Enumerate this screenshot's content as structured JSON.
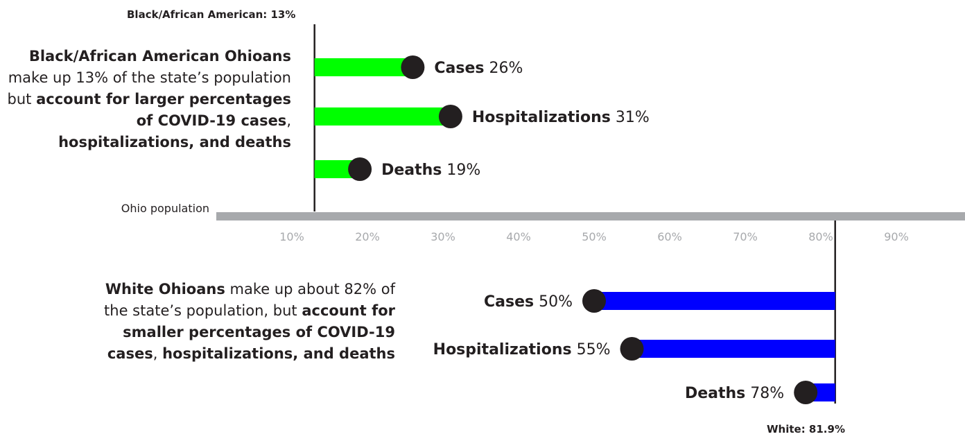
{
  "chart_data": {
    "type": "bar",
    "title": "",
    "xlabel": "Ohio population",
    "xlim": [
      0,
      100
    ],
    "xticks": [
      "10%",
      "20%",
      "30%",
      "40%",
      "50%",
      "60%",
      "70%",
      "80%",
      "90%"
    ],
    "groups": [
      {
        "id": "black",
        "color": "#00ff00",
        "population_label": "Black/African American: 13%",
        "population_share": 13,
        "note": {
          "bold1": "Black/African American Ohioans",
          "text1": " make up 13% of the state’s population but ",
          "bold2": "account for larger percentages of COVID-19 cases",
          "text2": ", ",
          "bold3": "hospitalizations, and deaths"
        },
        "bars": [
          {
            "label": "Cases",
            "value": 26,
            "value_label": "26%"
          },
          {
            "label": "Hospitalizations",
            "value": 31,
            "value_label": "31%"
          },
          {
            "label": "Deaths",
            "value": 19,
            "value_label": "19%"
          }
        ]
      },
      {
        "id": "white",
        "color": "#0000ff",
        "population_label": "White: 81.9%",
        "population_share": 81.9,
        "note": {
          "bold1": "White Ohioans",
          "text1": " make up about 82% of the state’s population, but ",
          "bold2": "account for smaller percentages of COVID-19 cases",
          "text2": ", ",
          "bold3": "hospitalizations, and deaths"
        },
        "bars": [
          {
            "label": "Cases",
            "value": 50,
            "value_label": "50%"
          },
          {
            "label": "Hospitalizations",
            "value": 55,
            "value_label": "55%"
          },
          {
            "label": "Deaths",
            "value": 78,
            "value_label": "78%"
          }
        ]
      }
    ]
  },
  "colors": {
    "axis": "#a7a9ac",
    "tick_text": "#a7a9ac",
    "dot": "#231f20",
    "ink": "#231f20"
  }
}
